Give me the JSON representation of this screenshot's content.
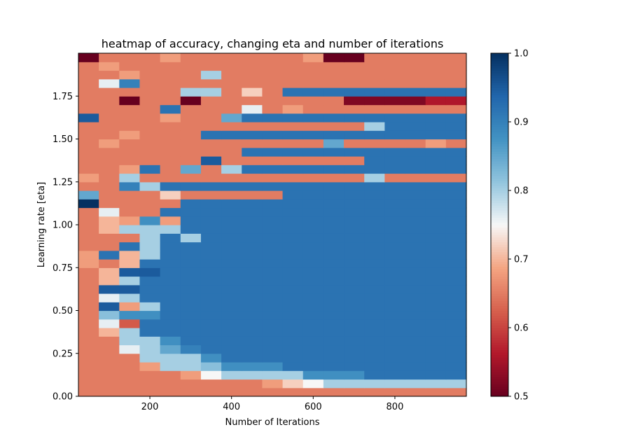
{
  "chart_data": {
    "type": "heatmap",
    "title": "heatmap of accuracy, changing eta and number of iterations",
    "xlabel": "Number of Iterations",
    "ylabel": "Learning rate [eta]",
    "xlim": [
      25,
      975
    ],
    "ylim": [
      0.0,
      2.0
    ],
    "x_ticks": [
      200,
      400,
      600,
      800
    ],
    "x_tick_labels": [
      "200",
      "400",
      "600",
      "800"
    ],
    "y_ticks": [
      0.0,
      0.25,
      0.5,
      0.75,
      1.0,
      1.25,
      1.5,
      1.75
    ],
    "y_tick_labels": [
      "0.00",
      "0.25",
      "0.50",
      "0.75",
      "1.00",
      "1.25",
      "1.50",
      "1.75"
    ],
    "x_centers": [
      50,
      100,
      150,
      200,
      250,
      300,
      350,
      400,
      450,
      500,
      550,
      600,
      650,
      700,
      750,
      800,
      850,
      900,
      950
    ],
    "y_start": 0.0,
    "y_step": 0.05,
    "colorbar": {
      "min": 0.5,
      "max": 1.0,
      "ticks": [
        0.5,
        0.6,
        0.7,
        0.8,
        0.9,
        1.0
      ],
      "tick_labels": [
        "0.5",
        "0.6",
        "0.7",
        "0.8",
        "0.9",
        "1.0"
      ],
      "colormap": "RdBu"
    },
    "accuracy_rows_from_eta_0": [
      [
        0.65,
        0.65,
        0.65,
        0.65,
        0.65,
        0.65,
        0.65,
        0.65,
        0.65,
        0.65,
        0.65,
        0.65,
        0.65,
        0.65,
        0.65,
        0.65,
        0.65,
        0.65,
        0.65
      ],
      [
        0.65,
        0.65,
        0.65,
        0.65,
        0.65,
        0.65,
        0.65,
        0.65,
        0.65,
        0.68,
        0.72,
        0.75,
        0.8,
        0.8,
        0.8,
        0.8,
        0.8,
        0.8,
        0.8
      ],
      [
        0.65,
        0.65,
        0.65,
        0.65,
        0.65,
        0.68,
        0.75,
        0.8,
        0.8,
        0.8,
        0.8,
        0.88,
        0.88,
        0.88,
        0.92,
        0.92,
        0.92,
        0.92,
        0.92
      ],
      [
        0.65,
        0.65,
        0.65,
        0.68,
        0.8,
        0.8,
        0.82,
        0.88,
        0.88,
        0.88,
        0.92,
        0.92,
        0.92,
        0.92,
        0.92,
        0.92,
        0.92,
        0.92,
        0.92
      ],
      [
        0.65,
        0.65,
        0.65,
        0.8,
        0.8,
        0.8,
        0.88,
        0.92,
        0.92,
        0.92,
        0.92,
        0.92,
        0.92,
        0.92,
        0.92,
        0.92,
        0.92,
        0.92,
        0.92
      ],
      [
        0.65,
        0.65,
        0.76,
        0.8,
        0.85,
        0.9,
        0.92,
        0.92,
        0.92,
        0.92,
        0.92,
        0.92,
        0.92,
        0.92,
        0.92,
        0.92,
        0.92,
        0.92,
        0.92
      ],
      [
        0.65,
        0.65,
        0.8,
        0.8,
        0.88,
        0.92,
        0.92,
        0.92,
        0.92,
        0.92,
        0.92,
        0.92,
        0.92,
        0.92,
        0.92,
        0.92,
        0.92,
        0.92,
        0.92
      ],
      [
        0.65,
        0.7,
        0.8,
        0.92,
        0.92,
        0.92,
        0.92,
        0.92,
        0.92,
        0.92,
        0.92,
        0.92,
        0.92,
        0.92,
        0.92,
        0.92,
        0.92,
        0.92,
        0.92
      ],
      [
        0.65,
        0.76,
        0.62,
        0.92,
        0.92,
        0.92,
        0.92,
        0.92,
        0.92,
        0.92,
        0.92,
        0.92,
        0.92,
        0.92,
        0.92,
        0.92,
        0.92,
        0.92,
        0.92
      ],
      [
        0.65,
        0.82,
        0.88,
        0.88,
        0.92,
        0.92,
        0.92,
        0.92,
        0.92,
        0.92,
        0.92,
        0.92,
        0.92,
        0.92,
        0.92,
        0.92,
        0.92,
        0.92,
        0.92
      ],
      [
        0.65,
        0.95,
        0.68,
        0.8,
        0.92,
        0.92,
        0.92,
        0.92,
        0.92,
        0.92,
        0.92,
        0.92,
        0.92,
        0.92,
        0.92,
        0.92,
        0.92,
        0.92,
        0.92
      ],
      [
        0.65,
        0.76,
        0.8,
        0.92,
        0.92,
        0.92,
        0.92,
        0.92,
        0.92,
        0.92,
        0.92,
        0.92,
        0.92,
        0.92,
        0.92,
        0.92,
        0.92,
        0.92,
        0.92
      ],
      [
        0.65,
        0.95,
        0.95,
        0.92,
        0.92,
        0.92,
        0.92,
        0.92,
        0.92,
        0.92,
        0.92,
        0.92,
        0.92,
        0.92,
        0.92,
        0.92,
        0.92,
        0.92,
        0.92
      ],
      [
        0.65,
        0.7,
        0.8,
        0.92,
        0.92,
        0.92,
        0.92,
        0.92,
        0.92,
        0.92,
        0.92,
        0.92,
        0.92,
        0.92,
        0.92,
        0.92,
        0.92,
        0.92,
        0.92
      ],
      [
        0.65,
        0.7,
        0.95,
        0.95,
        0.92,
        0.92,
        0.92,
        0.92,
        0.92,
        0.92,
        0.92,
        0.92,
        0.92,
        0.92,
        0.92,
        0.92,
        0.92,
        0.92,
        0.92
      ],
      [
        0.68,
        0.65,
        0.7,
        0.92,
        0.92,
        0.92,
        0.92,
        0.92,
        0.92,
        0.92,
        0.92,
        0.92,
        0.92,
        0.92,
        0.92,
        0.92,
        0.92,
        0.92,
        0.92
      ],
      [
        0.68,
        0.92,
        0.7,
        0.8,
        0.92,
        0.92,
        0.92,
        0.92,
        0.92,
        0.92,
        0.92,
        0.92,
        0.92,
        0.92,
        0.92,
        0.92,
        0.92,
        0.92,
        0.92
      ],
      [
        0.65,
        0.65,
        0.92,
        0.8,
        0.92,
        0.92,
        0.92,
        0.92,
        0.92,
        0.92,
        0.92,
        0.92,
        0.92,
        0.92,
        0.92,
        0.92,
        0.92,
        0.92,
        0.92
      ],
      [
        0.65,
        0.65,
        0.65,
        0.8,
        0.92,
        0.8,
        0.92,
        0.92,
        0.92,
        0.92,
        0.92,
        0.92,
        0.92,
        0.92,
        0.92,
        0.92,
        0.92,
        0.92,
        0.92
      ],
      [
        0.65,
        0.7,
        0.8,
        0.8,
        0.8,
        0.92,
        0.92,
        0.92,
        0.92,
        0.92,
        0.92,
        0.92,
        0.92,
        0.92,
        0.92,
        0.92,
        0.92,
        0.92,
        0.92
      ],
      [
        0.65,
        0.7,
        0.68,
        0.88,
        0.68,
        0.92,
        0.92,
        0.92,
        0.92,
        0.92,
        0.92,
        0.92,
        0.92,
        0.92,
        0.92,
        0.92,
        0.92,
        0.92,
        0.92
      ],
      [
        0.65,
        0.76,
        0.65,
        0.65,
        0.92,
        0.92,
        0.92,
        0.92,
        0.92,
        0.92,
        0.92,
        0.92,
        0.92,
        0.92,
        0.92,
        0.92,
        0.92,
        0.92,
        0.92
      ],
      [
        1.0,
        0.65,
        0.65,
        0.65,
        0.65,
        0.92,
        0.92,
        0.92,
        0.92,
        0.92,
        0.92,
        0.92,
        0.92,
        0.92,
        0.92,
        0.92,
        0.92,
        0.92,
        0.92
      ],
      [
        0.85,
        0.65,
        0.65,
        0.65,
        0.72,
        0.65,
        0.65,
        0.65,
        0.65,
        0.65,
        0.92,
        0.92,
        0.92,
        0.92,
        0.92,
        0.92,
        0.92,
        0.92,
        0.92
      ],
      [
        0.65,
        0.65,
        0.9,
        0.8,
        0.92,
        0.92,
        0.92,
        0.92,
        0.92,
        0.92,
        0.92,
        0.92,
        0.92,
        0.92,
        0.92,
        0.92,
        0.92,
        0.92,
        0.92
      ],
      [
        0.68,
        0.65,
        0.8,
        0.65,
        0.65,
        0.65,
        0.65,
        0.65,
        0.65,
        0.65,
        0.65,
        0.65,
        0.65,
        0.65,
        0.8,
        0.65,
        0.65,
        0.65,
        0.65
      ],
      [
        0.65,
        0.65,
        0.68,
        0.92,
        0.65,
        0.85,
        0.65,
        0.8,
        0.92,
        0.92,
        0.92,
        0.92,
        0.92,
        0.92,
        0.92,
        0.92,
        0.92,
        0.92,
        0.92
      ],
      [
        0.65,
        0.65,
        0.65,
        0.65,
        0.65,
        0.65,
        0.95,
        0.65,
        0.65,
        0.65,
        0.65,
        0.65,
        0.65,
        0.65,
        0.92,
        0.92,
        0.92,
        0.92,
        0.92
      ],
      [
        0.65,
        0.65,
        0.65,
        0.65,
        0.65,
        0.65,
        0.65,
        0.65,
        0.92,
        0.92,
        0.92,
        0.92,
        0.92,
        0.92,
        0.92,
        0.92,
        0.92,
        0.92,
        0.92
      ],
      [
        0.65,
        0.68,
        0.65,
        0.65,
        0.65,
        0.65,
        0.65,
        0.65,
        0.65,
        0.65,
        0.65,
        0.65,
        0.85,
        0.65,
        0.65,
        0.65,
        0.65,
        0.68,
        0.65
      ],
      [
        0.65,
        0.65,
        0.68,
        0.65,
        0.65,
        0.65,
        0.92,
        0.92,
        0.92,
        0.92,
        0.92,
        0.92,
        0.92,
        0.92,
        0.92,
        0.92,
        0.92,
        0.92,
        0.92
      ],
      [
        0.65,
        0.65,
        0.65,
        0.65,
        0.65,
        0.65,
        0.65,
        0.65,
        0.65,
        0.65,
        0.65,
        0.65,
        0.65,
        0.65,
        0.8,
        0.92,
        0.92,
        0.92,
        0.92
      ],
      [
        0.95,
        0.65,
        0.65,
        0.65,
        0.68,
        0.65,
        0.65,
        0.85,
        0.92,
        0.92,
        0.92,
        0.92,
        0.92,
        0.92,
        0.92,
        0.92,
        0.92,
        0.92,
        0.92
      ],
      [
        0.65,
        0.65,
        0.65,
        0.65,
        0.92,
        0.65,
        0.65,
        0.65,
        0.76,
        0.65,
        0.68,
        0.65,
        0.65,
        0.65,
        0.65,
        0.65,
        0.65,
        0.65,
        0.65
      ],
      [
        0.65,
        0.65,
        0.5,
        0.65,
        0.65,
        0.5,
        0.65,
        0.65,
        0.65,
        0.65,
        0.65,
        0.65,
        0.65,
        0.52,
        0.52,
        0.52,
        0.52,
        0.56,
        0.56
      ],
      [
        0.65,
        0.65,
        0.65,
        0.65,
        0.65,
        0.8,
        0.8,
        0.65,
        0.72,
        0.65,
        0.92,
        0.92,
        0.92,
        0.92,
        0.92,
        0.92,
        0.92,
        0.92,
        0.92
      ],
      [
        0.65,
        0.76,
        0.9,
        0.65,
        0.65,
        0.65,
        0.65,
        0.65,
        0.65,
        0.65,
        0.65,
        0.65,
        0.65,
        0.65,
        0.65,
        0.65,
        0.65,
        0.65,
        0.65
      ],
      [
        0.65,
        0.65,
        0.68,
        0.65,
        0.65,
        0.65,
        0.8,
        0.65,
        0.65,
        0.65,
        0.65,
        0.65,
        0.65,
        0.65,
        0.65,
        0.65,
        0.65,
        0.65,
        0.65
      ],
      [
        0.65,
        0.68,
        0.65,
        0.65,
        0.65,
        0.65,
        0.65,
        0.65,
        0.65,
        0.65,
        0.65,
        0.65,
        0.65,
        0.65,
        0.65,
        0.65,
        0.65,
        0.65,
        0.65
      ],
      [
        0.5,
        0.65,
        0.65,
        0.65,
        0.68,
        0.65,
        0.65,
        0.65,
        0.65,
        0.65,
        0.65,
        0.68,
        0.5,
        0.5,
        0.65,
        0.65,
        0.65,
        0.65,
        0.65
      ]
    ]
  }
}
